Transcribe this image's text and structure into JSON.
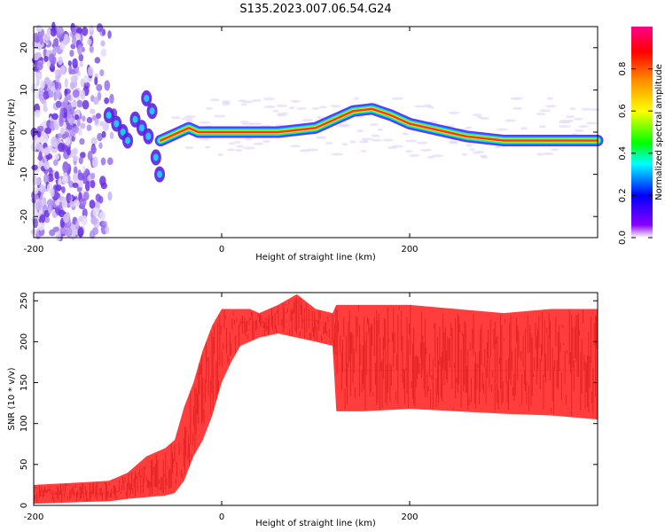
{
  "title": "S135.2023.007.06.54.G24",
  "chart_data": [
    {
      "type": "heatmap",
      "title": "S135.2023.007.06.54.G24",
      "xlabel": "Height of straight line (km)",
      "ylabel": "Frequency (Hz)",
      "xlim": [
        -200,
        400
      ],
      "ylim": [
        -25,
        25
      ],
      "xticks": [
        "-200",
        "0",
        "200"
      ],
      "yticks": [
        "-20",
        "-10",
        "0",
        "10",
        "20"
      ],
      "colorbar": {
        "label": "Normalized spectral amplitude",
        "range": [
          0,
          1
        ],
        "ticks": [
          "0.0",
          "0.2",
          "0.4",
          "0.6",
          "0.8"
        ]
      },
      "ridge": {
        "x": [
          -65,
          -55,
          -45,
          -35,
          -25,
          -10,
          20,
          60,
          80,
          100,
          120,
          140,
          160,
          180,
          200,
          220,
          240,
          260,
          280,
          300,
          340,
          400
        ],
        "y": [
          -2,
          -1,
          0,
          1,
          0,
          0,
          0,
          0,
          0.5,
          1,
          3,
          5,
          5.5,
          4,
          2,
          1,
          0,
          -1,
          -1.5,
          -2,
          -2,
          -2
        ]
      },
      "scatter_region": {
        "x": [
          -200,
          -110
        ],
        "y": [
          -25,
          25
        ]
      },
      "grid": false
    },
    {
      "type": "line",
      "xlabel": "Height of straight line (km)",
      "ylabel": "SNR (10 * v/v)",
      "xlim": [
        -200,
        400
      ],
      "ylim": [
        0,
        260
      ],
      "xticks": [
        "-200",
        "0",
        "200"
      ],
      "yticks": [
        "0",
        "50",
        "100",
        "150",
        "200",
        "250"
      ],
      "color": "#ff3333",
      "series": [
        {
          "x": [
            -200,
            -150,
            -120,
            -100,
            -80,
            -60,
            -50,
            -40,
            -30,
            -20,
            -10,
            0,
            10,
            20,
            30,
            40,
            60,
            80,
            100,
            118,
            122,
            150,
            200,
            250,
            300,
            350,
            400
          ],
          "y": [
            12,
            15,
            15,
            20,
            25,
            30,
            50,
            80,
            110,
            130,
            160,
            190,
            200,
            210,
            215,
            218,
            220,
            230,
            225,
            220,
            165,
            165,
            165,
            165,
            165,
            165,
            165
          ],
          "envelope_low": [
            2,
            4,
            5,
            8,
            10,
            12,
            15,
            30,
            60,
            80,
            110,
            150,
            175,
            195,
            200,
            205,
            210,
            205,
            200,
            195,
            115,
            115,
            118,
            115,
            112,
            110,
            105
          ],
          "envelope_high": [
            25,
            28,
            30,
            40,
            60,
            70,
            80,
            120,
            150,
            190,
            220,
            240,
            240,
            240,
            240,
            235,
            245,
            258,
            240,
            235,
            245,
            245,
            245,
            240,
            235,
            240,
            240
          ]
        }
      ],
      "grid": false
    }
  ]
}
